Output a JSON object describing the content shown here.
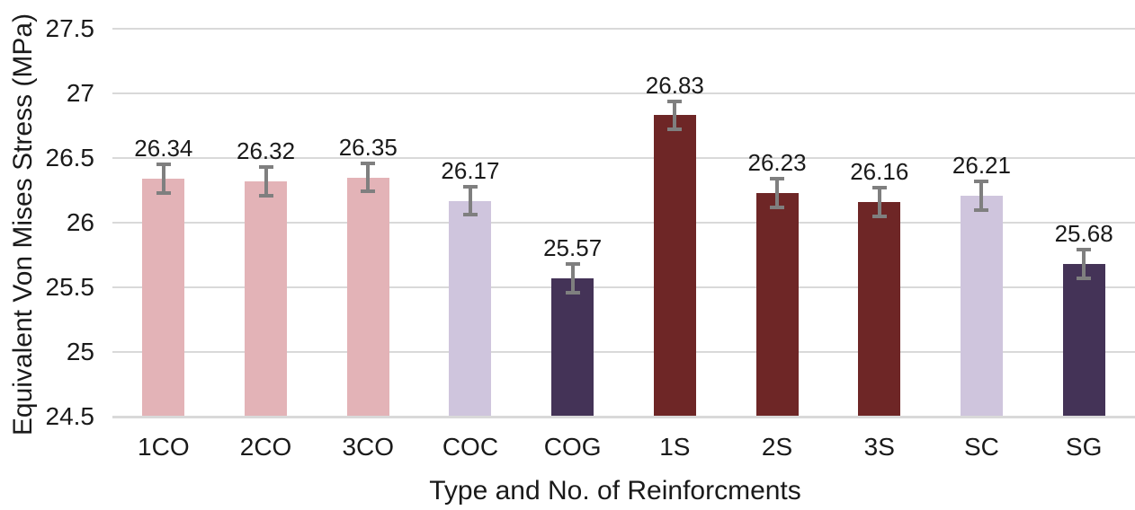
{
  "chart_data": {
    "type": "bar",
    "title": "",
    "xlabel": "Type and No. of Reinforcments",
    "ylabel": "Equivalent Von Mises Stress (MPa)",
    "categories": [
      "1CO",
      "2CO",
      "3CO",
      "COC",
      "COG",
      "1S",
      "2S",
      "3S",
      "SC",
      "SG"
    ],
    "values": [
      26.34,
      26.32,
      26.35,
      26.17,
      25.57,
      26.83,
      26.23,
      26.16,
      26.21,
      25.68
    ],
    "value_labels": [
      "26.34",
      "26.32",
      "26.35",
      "26.17",
      "25.57",
      "26.83",
      "26.23",
      "26.16",
      "26.21",
      "25.68"
    ],
    "error_bar": 0.11,
    "bar_colors": [
      "#e3b3b7",
      "#e3b3b7",
      "#e3b3b7",
      "#cfc5dd",
      "#443357",
      "#6e2626",
      "#6e2626",
      "#6e2626",
      "#cfc5dd",
      "#443357"
    ],
    "ylim": [
      24.5,
      27.5
    ],
    "ytick_labels": [
      "27.5",
      "27",
      "26.5",
      "26",
      "25.5",
      "25",
      "24.5"
    ],
    "yticks": [
      27.5,
      27.0,
      26.5,
      26.0,
      25.5,
      25.0,
      24.5
    ],
    "grid": "horizontal",
    "legend_position": "none",
    "styles": {
      "gridline_color": "#d9d9d9",
      "axis_line_color": "#d9d9d9",
      "error_bar_color": "#7f7f7f",
      "text_color": "#1a1a1a",
      "background": "#ffffff"
    }
  }
}
